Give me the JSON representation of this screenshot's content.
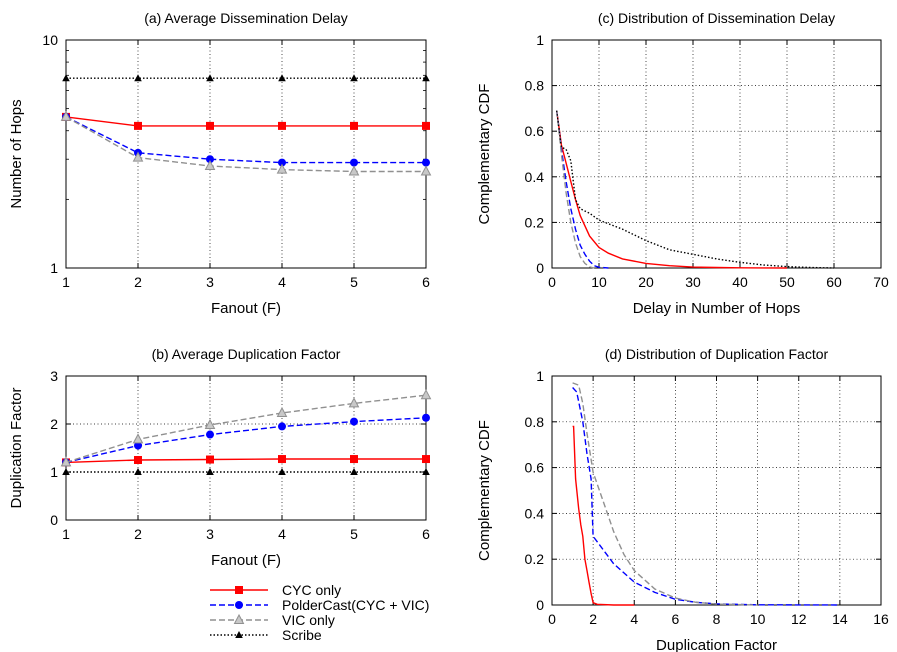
{
  "chart_data": [
    {
      "id": "a",
      "type": "line",
      "title": "(a) Average Dissemination Delay",
      "xlabel": "Fanout (F)",
      "ylabel": "Number of Hops",
      "xlim": [
        1,
        6
      ],
      "ylim": [
        1,
        10
      ],
      "yscale": "log",
      "xticks": [
        1,
        2,
        3,
        4,
        5,
        6
      ],
      "yticks": [
        1,
        10
      ],
      "grid": true,
      "x": [
        1,
        2,
        3,
        4,
        5,
        6
      ],
      "series": [
        {
          "key": "cyc",
          "values": [
            4.6,
            4.2,
            4.2,
            4.2,
            4.2,
            4.2
          ]
        },
        {
          "key": "polder",
          "values": [
            4.6,
            3.2,
            3.0,
            2.9,
            2.9,
            2.9
          ]
        },
        {
          "key": "vic",
          "values": [
            4.6,
            3.05,
            2.8,
            2.7,
            2.65,
            2.65
          ]
        },
        {
          "key": "scribe",
          "values": [
            6.8,
            6.8,
            6.8,
            6.8,
            6.8,
            6.8
          ]
        }
      ]
    },
    {
      "id": "b",
      "type": "line",
      "title": "(b) Average Duplication Factor",
      "xlabel": "Fanout (F)",
      "ylabel": "Duplication Factor",
      "xlim": [
        1,
        6
      ],
      "ylim": [
        0,
        3
      ],
      "xticks": [
        1,
        2,
        3,
        4,
        5,
        6
      ],
      "yticks": [
        0,
        1,
        2,
        3
      ],
      "grid": true,
      "x": [
        1,
        2,
        3,
        4,
        5,
        6
      ],
      "series": [
        {
          "key": "cyc",
          "values": [
            1.2,
            1.25,
            1.26,
            1.27,
            1.27,
            1.27
          ]
        },
        {
          "key": "polder",
          "values": [
            1.2,
            1.55,
            1.78,
            1.95,
            2.05,
            2.13
          ]
        },
        {
          "key": "vic",
          "values": [
            1.2,
            1.68,
            1.98,
            2.23,
            2.43,
            2.6
          ]
        },
        {
          "key": "scribe",
          "values": [
            1.0,
            1.0,
            1.0,
            1.0,
            1.0,
            1.0
          ]
        }
      ]
    },
    {
      "id": "c",
      "type": "line",
      "title": "(c) Distribution of Dissemination Delay",
      "xlabel": "Delay in Number of Hops",
      "ylabel": "Complementary CDF",
      "xlim": [
        0,
        70
      ],
      "ylim": [
        0,
        1
      ],
      "xticks": [
        0,
        10,
        20,
        30,
        40,
        50,
        60,
        70
      ],
      "yticks": [
        0,
        0.2,
        0.4,
        0.6,
        0.8,
        1
      ],
      "grid": true,
      "series": [
        {
          "key": "cyc",
          "x": [
            1,
            2,
            3,
            4,
            5,
            6,
            8,
            10,
            12,
            15,
            20,
            25,
            30,
            35,
            40,
            50
          ],
          "values": [
            0.69,
            0.54,
            0.46,
            0.38,
            0.3,
            0.23,
            0.14,
            0.09,
            0.065,
            0.04,
            0.02,
            0.01,
            0.004,
            0.002,
            0.001,
            0
          ]
        },
        {
          "key": "polder",
          "x": [
            1,
            2,
            3,
            4,
            5,
            6,
            7,
            8,
            9,
            10,
            12
          ],
          "values": [
            0.69,
            0.52,
            0.38,
            0.26,
            0.17,
            0.1,
            0.06,
            0.03,
            0.01,
            0.003,
            0
          ]
        },
        {
          "key": "vic",
          "x": [
            1,
            2,
            3,
            4,
            5,
            6,
            7,
            8,
            9
          ],
          "values": [
            0.69,
            0.5,
            0.33,
            0.2,
            0.11,
            0.05,
            0.02,
            0.005,
            0
          ]
        },
        {
          "key": "scribe",
          "x": [
            1,
            2,
            3,
            4,
            5,
            6,
            8,
            10,
            15,
            20,
            25,
            30,
            35,
            40,
            45,
            50,
            55,
            60
          ],
          "values": [
            0.69,
            0.53,
            0.52,
            0.47,
            0.3,
            0.26,
            0.24,
            0.21,
            0.17,
            0.12,
            0.08,
            0.06,
            0.04,
            0.025,
            0.013,
            0.006,
            0.002,
            0
          ]
        }
      ]
    },
    {
      "id": "d",
      "type": "line",
      "title": "(d) Distribution of Duplication Factor",
      "xlabel": "Duplication Factor",
      "ylabel": "Complementary CDF",
      "xlim": [
        0,
        16
      ],
      "ylim": [
        0,
        1
      ],
      "xticks": [
        0,
        2,
        4,
        6,
        8,
        10,
        12,
        14,
        16
      ],
      "yticks": [
        0,
        0.2,
        0.4,
        0.6,
        0.8,
        1
      ],
      "grid": true,
      "series": [
        {
          "key": "cyc",
          "x": [
            1.0,
            1.05,
            1.15,
            1.3,
            1.4,
            1.5,
            1.6,
            1.7,
            1.8,
            1.9,
            2.0,
            2.2,
            3.0,
            4.0
          ],
          "values": [
            0.78,
            0.78,
            0.55,
            0.42,
            0.35,
            0.3,
            0.2,
            0.15,
            0.1,
            0.05,
            0.01,
            0.003,
            0,
            0
          ]
        },
        {
          "key": "polder",
          "x": [
            1.0,
            1.2,
            1.5,
            1.7,
            1.9,
            2.0,
            2.5,
            3.0,
            4.0,
            5.0,
            6.0,
            7.0,
            8.0,
            10.0,
            14.0
          ],
          "values": [
            0.95,
            0.93,
            0.8,
            0.66,
            0.55,
            0.3,
            0.24,
            0.18,
            0.1,
            0.055,
            0.025,
            0.012,
            0.005,
            0.001,
            0
          ]
        },
        {
          "key": "vic",
          "x": [
            1.0,
            1.3,
            1.5,
            1.7,
            2.0,
            2.5,
            3.0,
            3.5,
            4.0,
            5.0,
            6.0,
            7.0,
            8.0,
            10.0
          ],
          "values": [
            0.97,
            0.96,
            0.88,
            0.75,
            0.58,
            0.45,
            0.32,
            0.22,
            0.15,
            0.07,
            0.03,
            0.012,
            0.004,
            0
          ]
        }
      ]
    }
  ],
  "legend": {
    "placement": "bottom-left",
    "items": [
      {
        "key": "cyc",
        "label": "CYC only"
      },
      {
        "key": "polder",
        "label": "PolderCast(CYC + VIC)"
      },
      {
        "key": "vic",
        "label": "VIC only"
      },
      {
        "key": "scribe",
        "label": "Scribe"
      }
    ]
  },
  "styles": {
    "cyc": {
      "color": "#ff0000",
      "marker": "square",
      "dash": "solid"
    },
    "polder": {
      "color": "#0000ff",
      "marker": "circle",
      "dash": "dashed"
    },
    "vic": {
      "color": "#909090",
      "marker": "triangle-open",
      "dash": "dashed"
    },
    "scribe": {
      "color": "#000000",
      "marker": "triangle",
      "dash": "dotted"
    }
  }
}
